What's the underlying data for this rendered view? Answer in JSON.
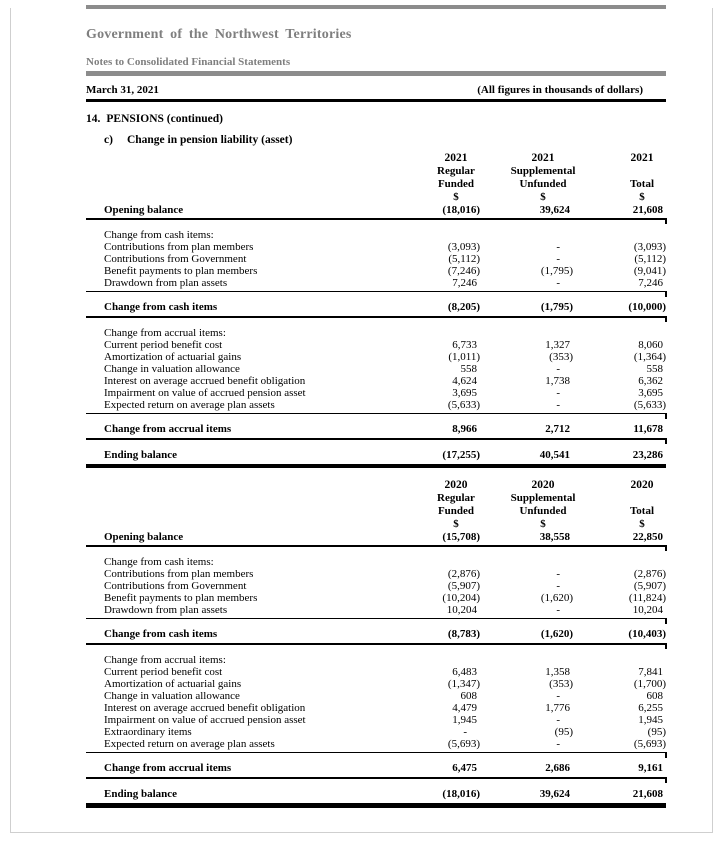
{
  "header": {
    "org_title": "Government of the Northwest Territories",
    "doc_subtitle": "Notes to Consolidated Financial Statements",
    "date_line": "March 31, 2021",
    "figures_note": "(All figures in thousands of dollars)"
  },
  "note": {
    "number": "14.",
    "title": "PENSIONS (continued)",
    "subsection_letter": "c)",
    "subsection_title": "Change in pension liability (asset)"
  },
  "accent_colors": {
    "header_gray_text": "#7f7f7f",
    "header_gray_bar": "#8c8c8c",
    "rule_black": "#000000"
  },
  "tables": [
    {
      "year": "2021",
      "col_headers": [
        {
          "year": "2021",
          "line1": "Regular",
          "line2": "Funded",
          "unit": "$"
        },
        {
          "year": "2021",
          "line1": "Supplemental",
          "line2": "Unfunded",
          "unit": "$"
        },
        {
          "year": "2021",
          "line1": "",
          "line2": "Total",
          "unit": "$"
        }
      ],
      "rows": [
        {
          "type": "opening",
          "label": "Opening balance",
          "v1": "(18,016)",
          "v2": "39,624",
          "v3": "21,608"
        },
        {
          "type": "section",
          "label": "Change from cash items:"
        },
        {
          "type": "item",
          "label": "Contributions from plan members",
          "v1": "(3,093)",
          "v2": "-",
          "v3": "(3,093)"
        },
        {
          "type": "item",
          "label": "Contributions from Government",
          "v1": "(5,112)",
          "v2": "-",
          "v3": "(5,112)"
        },
        {
          "type": "item",
          "label": "Benefit payments to plan members",
          "v1": "(7,246)",
          "v2": "(1,795)",
          "v3": "(9,041)"
        },
        {
          "type": "item_end",
          "label": "Drawdown from plan assets",
          "v1": "7,246",
          "v2": "-",
          "v3": "7,246"
        },
        {
          "type": "total",
          "label": "Change from cash items",
          "v1": "(8,205)",
          "v2": "(1,795)",
          "v3": "(10,000)"
        },
        {
          "type": "section",
          "label": "Change from accrual items:"
        },
        {
          "type": "item",
          "label": "Current period benefit cost",
          "v1": "6,733",
          "v2": "1,327",
          "v3": "8,060"
        },
        {
          "type": "item",
          "label": "Amortization of actuarial gains",
          "v1": "(1,011)",
          "v2": "(353)",
          "v3": "(1,364)"
        },
        {
          "type": "item",
          "label": "Change in valuation allowance",
          "v1": "558",
          "v2": "-",
          "v3": "558"
        },
        {
          "type": "item",
          "label": "Interest on average accrued benefit obligation",
          "v1": "4,624",
          "v2": "1,738",
          "v3": "6,362"
        },
        {
          "type": "item",
          "label": "Impairment on value of accrued pension asset",
          "v1": "3,695",
          "v2": "-",
          "v3": "3,695"
        },
        {
          "type": "item_end",
          "label": "Expected return on average plan assets",
          "v1": "(5,633)",
          "v2": "-",
          "v3": "(5,633)"
        },
        {
          "type": "total",
          "label": "Change from accrual items",
          "v1": "8,966",
          "v2": "2,712",
          "v3": "11,678"
        },
        {
          "type": "ending",
          "label": "Ending balance",
          "v1": "(17,255)",
          "v2": "40,541",
          "v3": "23,286"
        }
      ]
    },
    {
      "year": "2020",
      "col_headers": [
        {
          "year": "2020",
          "line1": "Regular",
          "line2": "Funded",
          "unit": "$"
        },
        {
          "year": "2020",
          "line1": "Supplemental",
          "line2": "Unfunded",
          "unit": "$"
        },
        {
          "year": "2020",
          "line1": "",
          "line2": "Total",
          "unit": "$"
        }
      ],
      "rows": [
        {
          "type": "opening",
          "label": "Opening balance",
          "v1": "(15,708)",
          "v2": "38,558",
          "v3": "22,850"
        },
        {
          "type": "section",
          "label": "Change from cash items:"
        },
        {
          "type": "item",
          "label": "Contributions from plan members",
          "v1": "(2,876)",
          "v2": "-",
          "v3": "(2,876)"
        },
        {
          "type": "item",
          "label": "Contributions from Government",
          "v1": "(5,907)",
          "v2": "-",
          "v3": "(5,907)"
        },
        {
          "type": "item",
          "label": "Benefit payments to plan members",
          "v1": "(10,204)",
          "v2": "(1,620)",
          "v3": "(11,824)"
        },
        {
          "type": "item_end",
          "label": "Drawdown from plan assets",
          "v1": "10,204",
          "v2": "-",
          "v3": "10,204"
        },
        {
          "type": "total",
          "label": "Change from cash items",
          "v1": "(8,783)",
          "v2": "(1,620)",
          "v3": "(10,403)"
        },
        {
          "type": "section",
          "label": "Change from accrual items:"
        },
        {
          "type": "item",
          "label": "Current period benefit cost",
          "v1": "6,483",
          "v2": "1,358",
          "v3": "7,841"
        },
        {
          "type": "item",
          "label": "Amortization of actuarial gains",
          "v1": "(1,347)",
          "v2": "(353)",
          "v3": "(1,700)"
        },
        {
          "type": "item",
          "label": "Change in valuation allowance",
          "v1": "608",
          "v2": "-",
          "v3": "608"
        },
        {
          "type": "item",
          "label": "Interest on average accrued benefit obligation",
          "v1": "4,479",
          "v2": "1,776",
          "v3": "6,255"
        },
        {
          "type": "item",
          "label": "Impairment on value of accrued pension asset",
          "v1": "1,945",
          "v2": "-",
          "v3": "1,945"
        },
        {
          "type": "item",
          "label": "Extraordinary items",
          "v1": "-",
          "v2": "(95)",
          "v3": "(95)"
        },
        {
          "type": "item_end",
          "label": "Expected return on average plan assets",
          "v1": "(5,693)",
          "v2": "-",
          "v3": "(5,693)"
        },
        {
          "type": "total",
          "label": "Change from accrual items",
          "v1": "6,475",
          "v2": "2,686",
          "v3": "9,161"
        },
        {
          "type": "ending",
          "label": "Ending balance",
          "v1": "(18,016)",
          "v2": "39,624",
          "v3": "21,608"
        }
      ]
    }
  ]
}
